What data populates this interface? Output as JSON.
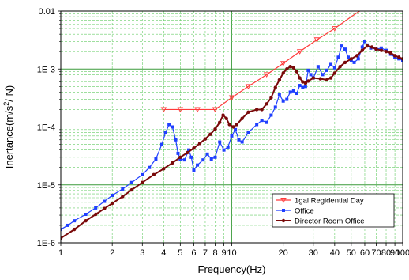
{
  "chart_data": {
    "type": "line",
    "xlabel": "Frequency(Hz)",
    "ylabel_main": "Inertance(m/s",
    "ylabel_sup": "2",
    "ylabel_tail": "/ N)",
    "x_scale": "log",
    "y_scale": "log",
    "xlim": [
      1,
      100
    ],
    "ylim": [
      1e-06,
      0.01
    ],
    "grid": true,
    "legend_position": "bottom-right",
    "x_ticks": [
      {
        "v": 1,
        "label": "1"
      },
      {
        "v": 2,
        "label": "2"
      },
      {
        "v": 3,
        "label": "3"
      },
      {
        "v": 4,
        "label": "4"
      },
      {
        "v": 5,
        "label": "5"
      },
      {
        "v": 6,
        "label": "6"
      },
      {
        "v": 7,
        "label": "7"
      },
      {
        "v": 8,
        "label": "8"
      },
      {
        "v": 9,
        "label": "9"
      },
      {
        "v": 10,
        "label": "10"
      },
      {
        "v": 20,
        "label": "20"
      },
      {
        "v": 30,
        "label": "30"
      },
      {
        "v": 40,
        "label": "40"
      },
      {
        "v": 50,
        "label": "50"
      },
      {
        "v": 60,
        "label": "60"
      },
      {
        "v": 70,
        "label": "70"
      },
      {
        "v": 80,
        "label": "80"
      },
      {
        "v": 90,
        "label": "90"
      },
      {
        "v": 100,
        "label": "100"
      }
    ],
    "y_ticks": [
      {
        "v": 1e-06,
        "label": "1E-6"
      },
      {
        "v": 1e-05,
        "label": "1E-5"
      },
      {
        "v": 0.0001,
        "label": "1E-4"
      },
      {
        "v": 0.001,
        "label": "1E-3"
      },
      {
        "v": 0.01,
        "label": "0.01"
      }
    ],
    "series": [
      {
        "name": "1gal Regidential Day",
        "color": "#ff3a3a",
        "marker": "triangle-down",
        "points": [
          [
            4,
            0.0002
          ],
          [
            5,
            0.0002
          ],
          [
            6.3,
            0.0002
          ],
          [
            8,
            0.0002
          ],
          [
            10,
            0.00032
          ],
          [
            12.5,
            0.0005
          ],
          [
            16,
            0.0008
          ],
          [
            20,
            0.00125
          ],
          [
            25,
            0.002
          ],
          [
            31.5,
            0.0032
          ],
          [
            40,
            0.005
          ],
          [
            50,
            0.008
          ],
          [
            56,
            0.01
          ]
        ],
        "markers": [
          [
            4,
            0.0002
          ],
          [
            5,
            0.0002
          ],
          [
            6.3,
            0.0002
          ],
          [
            8,
            0.0002
          ],
          [
            10,
            0.00032
          ],
          [
            12.5,
            0.0005
          ],
          [
            16,
            0.0008
          ],
          [
            20,
            0.00125
          ],
          [
            25,
            0.002
          ],
          [
            31.5,
            0.0032
          ],
          [
            40,
            0.005
          ]
        ]
      },
      {
        "name": "Office",
        "color": "#1f3fff",
        "marker": "square",
        "points": [
          [
            1,
            1.7e-06
          ],
          [
            1.1,
            2e-06
          ],
          [
            1.2,
            2.4e-06
          ],
          [
            1.4,
            3.1e-06
          ],
          [
            1.6,
            4e-06
          ],
          [
            1.8,
            5.2e-06
          ],
          [
            2,
            6.6e-06
          ],
          [
            2.3,
            8.5e-06
          ],
          [
            2.6,
            1.1e-05
          ],
          [
            3,
            1.5e-05
          ],
          [
            3.3,
            2e-05
          ],
          [
            3.6,
            2.8e-05
          ],
          [
            3.9,
            5e-05
          ],
          [
            4.1,
            8e-05
          ],
          [
            4.3,
            0.00011
          ],
          [
            4.5,
            0.0001
          ],
          [
            4.7,
            6e-05
          ],
          [
            4.85,
            3.5e-05
          ],
          [
            5,
            2.8e-05
          ],
          [
            5.3,
            2.7e-05
          ],
          [
            5.6,
            4e-05
          ],
          [
            5.8,
            3e-05
          ],
          [
            6,
            1.8e-05
          ],
          [
            6.3,
            2.2e-05
          ],
          [
            6.8,
            2.7e-05
          ],
          [
            7.2,
            3.4e-05
          ],
          [
            7.6,
            2.8e-05
          ],
          [
            8,
            3e-05
          ],
          [
            8.5,
            5.5e-05
          ],
          [
            9,
            4e-05
          ],
          [
            9.5,
            4.5e-05
          ],
          [
            10,
            7e-05
          ],
          [
            10.5,
            9e-05
          ],
          [
            11,
            6e-05
          ],
          [
            11.5,
            5.5e-05
          ],
          [
            12.5,
            8e-05
          ],
          [
            14,
            0.00011
          ],
          [
            15,
            0.00013
          ],
          [
            16,
            0.00012
          ],
          [
            17,
            0.00016
          ],
          [
            18,
            0.00022
          ],
          [
            19,
            0.00036
          ],
          [
            20,
            0.00028
          ],
          [
            21,
            0.0003
          ],
          [
            22,
            0.0004
          ],
          [
            23,
            0.00042
          ],
          [
            24,
            0.00038
          ],
          [
            25,
            0.00052
          ],
          [
            26,
            0.00048
          ],
          [
            27,
            0.0005
          ],
          [
            28,
            0.00095
          ],
          [
            29,
            0.0008
          ],
          [
            30,
            0.0007
          ],
          [
            32,
            0.0011
          ],
          [
            34,
            0.0008
          ],
          [
            36,
            0.00095
          ],
          [
            38,
            0.0012
          ],
          [
            40,
            0.00105
          ],
          [
            42,
            0.0016
          ],
          [
            44,
            0.0025
          ],
          [
            46,
            0.0022
          ],
          [
            48,
            0.0016
          ],
          [
            50,
            0.0014
          ],
          [
            52,
            0.0013
          ],
          [
            55,
            0.0015
          ],
          [
            58,
            0.0024
          ],
          [
            60,
            0.003
          ],
          [
            62,
            0.0026
          ],
          [
            65,
            0.0023
          ],
          [
            70,
            0.0022
          ],
          [
            75,
            0.0023
          ],
          [
            80,
            0.0021
          ],
          [
            85,
            0.0018
          ],
          [
            90,
            0.0016
          ],
          [
            95,
            0.0015
          ],
          [
            100,
            0.0014
          ]
        ]
      },
      {
        "name": "Director Room Office",
        "color": "#7a0a0a",
        "marker": "circle",
        "points": [
          [
            1,
            1.2e-06
          ],
          [
            1.2,
            1.7e-06
          ],
          [
            1.4,
            2.4e-06
          ],
          [
            1.6,
            3.1e-06
          ],
          [
            1.8,
            3.9e-06
          ],
          [
            2,
            4.8e-06
          ],
          [
            2.3,
            6.3e-06
          ],
          [
            2.6,
            8.2e-06
          ],
          [
            3,
            1.1e-05
          ],
          [
            3.5,
            1.5e-05
          ],
          [
            4,
            1.9e-05
          ],
          [
            4.5,
            2.4e-05
          ],
          [
            5,
            3e-05
          ],
          [
            5.5,
            3.6e-05
          ],
          [
            6,
            4.3e-05
          ],
          [
            6.5,
            5.2e-05
          ],
          [
            7,
            6.2e-05
          ],
          [
            7.5,
            7.5e-05
          ],
          [
            8,
            9.2e-05
          ],
          [
            8.5,
            0.00012
          ],
          [
            8.9,
            0.00016
          ],
          [
            9.3,
            0.00014
          ],
          [
            9.7,
            0.00011
          ],
          [
            10.2,
            0.0001
          ],
          [
            10.7,
            0.00011
          ],
          [
            11.5,
            0.00014
          ],
          [
            12.5,
            0.00018
          ],
          [
            14,
            0.0002
          ],
          [
            15,
            0.0002
          ],
          [
            16,
            0.00025
          ],
          [
            17,
            0.00032
          ],
          [
            18,
            0.00048
          ],
          [
            19,
            0.00065
          ],
          [
            20,
            0.00085
          ],
          [
            21,
            0.001
          ],
          [
            22,
            0.0011
          ],
          [
            23,
            0.00105
          ],
          [
            24,
            0.0009
          ],
          [
            25,
            0.0007
          ],
          [
            26,
            0.0006
          ],
          [
            27,
            0.00057
          ],
          [
            28,
            0.00062
          ],
          [
            30,
            0.0007
          ],
          [
            33,
            0.00068
          ],
          [
            36,
            0.00065
          ],
          [
            38,
            0.0007
          ],
          [
            40,
            0.00085
          ],
          [
            43,
            0.0011
          ],
          [
            46,
            0.0013
          ],
          [
            50,
            0.0015
          ],
          [
            54,
            0.0017
          ],
          [
            58,
            0.0021
          ],
          [
            62,
            0.0025
          ],
          [
            66,
            0.0024
          ],
          [
            70,
            0.0022
          ],
          [
            75,
            0.0021
          ],
          [
            80,
            0.002
          ],
          [
            85,
            0.0019
          ],
          [
            90,
            0.0017
          ],
          [
            95,
            0.0016
          ],
          [
            100,
            0.0015
          ]
        ]
      }
    ]
  }
}
